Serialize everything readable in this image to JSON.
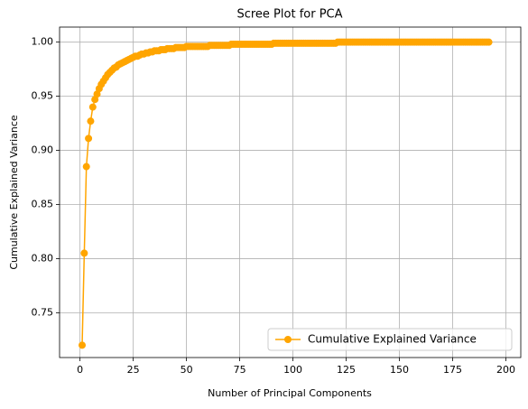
{
  "chart_data": {
    "type": "line",
    "title": "Scree Plot for PCA",
    "xlabel": "Number of Principal Components",
    "ylabel": "Cumulative Explained Variance",
    "x": [
      1,
      2,
      3,
      4,
      5,
      6,
      7,
      8,
      9,
      10,
      11,
      12,
      13,
      14,
      15,
      16,
      17,
      18,
      19,
      20,
      21,
      22,
      23,
      24,
      25,
      26,
      27,
      28,
      29,
      30,
      31,
      32,
      33,
      34,
      35,
      36,
      37,
      38,
      39,
      40,
      41,
      42,
      43,
      44,
      45,
      46,
      47,
      48,
      49,
      50,
      51,
      52,
      53,
      54,
      55,
      56,
      57,
      58,
      59,
      60,
      61,
      62,
      63,
      64,
      65,
      66,
      67,
      68,
      69,
      70,
      71,
      72,
      73,
      74,
      75,
      76,
      77,
      78,
      79,
      80,
      81,
      82,
      83,
      84,
      85,
      86,
      87,
      88,
      89,
      90,
      91,
      92,
      93,
      94,
      95,
      96,
      97,
      98,
      99,
      100,
      101,
      102,
      103,
      104,
      105,
      106,
      107,
      108,
      109,
      110,
      111,
      112,
      113,
      114,
      115,
      116,
      117,
      118,
      119,
      120,
      121,
      122,
      123,
      124,
      125,
      126,
      127,
      128,
      129,
      130,
      131,
      132,
      133,
      134,
      135,
      136,
      137,
      138,
      139,
      140,
      141,
      142,
      143,
      144,
      145,
      146,
      147,
      148,
      149,
      150,
      151,
      152,
      153,
      154,
      155,
      156,
      157,
      158,
      159,
      160,
      161,
      162,
      163,
      164,
      165,
      166,
      167,
      168,
      169,
      170,
      171,
      172,
      173,
      174,
      175,
      176,
      177,
      178,
      179,
      180,
      181,
      182,
      183,
      184,
      185,
      186,
      187,
      188,
      189,
      190,
      191,
      192
    ],
    "series": [
      {
        "name": "Cumulative Explained Variance",
        "color": "#ffa500",
        "values": [
          0.72,
          0.805,
          0.885,
          0.911,
          0.927,
          0.94,
          0.947,
          0.952,
          0.957,
          0.961,
          0.964,
          0.967,
          0.97,
          0.972,
          0.974,
          0.976,
          0.977,
          0.979,
          0.98,
          0.981,
          0.982,
          0.983,
          0.984,
          0.985,
          0.986,
          0.987,
          0.987,
          0.988,
          0.989,
          0.989,
          0.99,
          0.99,
          0.991,
          0.991,
          0.992,
          0.992,
          0.992,
          0.993,
          0.993,
          0.993,
          0.994,
          0.994,
          0.994,
          0.994,
          0.995,
          0.995,
          0.995,
          0.995,
          0.995,
          0.996,
          0.996,
          0.996,
          0.996,
          0.996,
          0.996,
          0.996,
          0.996,
          0.996,
          0.996,
          0.996,
          0.997,
          0.997,
          0.997,
          0.997,
          0.997,
          0.997,
          0.997,
          0.997,
          0.997,
          0.997,
          0.998,
          0.998,
          0.998,
          0.998,
          0.998,
          0.998,
          0.998,
          0.998,
          0.998,
          0.998,
          0.998,
          0.998,
          0.998,
          0.998,
          0.998,
          0.998,
          0.998,
          0.998,
          0.998,
          0.998,
          0.999,
          0.999,
          0.999,
          0.999,
          0.999,
          0.999,
          0.999,
          0.999,
          0.999,
          0.999,
          0.999,
          0.999,
          0.999,
          0.999,
          0.999,
          0.999,
          0.999,
          0.999,
          0.999,
          0.999,
          0.999,
          0.999,
          0.999,
          0.999,
          0.999,
          0.999,
          0.999,
          0.999,
          0.999,
          0.999,
          1.0,
          1.0,
          1.0,
          1.0,
          1.0,
          1.0,
          1.0,
          1.0,
          1.0,
          1.0,
          1.0,
          1.0,
          1.0,
          1.0,
          1.0,
          1.0,
          1.0,
          1.0,
          1.0,
          1.0,
          1.0,
          1.0,
          1.0,
          1.0,
          1.0,
          1.0,
          1.0,
          1.0,
          1.0,
          1.0,
          1.0,
          1.0,
          1.0,
          1.0,
          1.0,
          1.0,
          1.0,
          1.0,
          1.0,
          1.0,
          1.0,
          1.0,
          1.0,
          1.0,
          1.0,
          1.0,
          1.0,
          1.0,
          1.0,
          1.0,
          1.0,
          1.0,
          1.0,
          1.0,
          1.0,
          1.0,
          1.0,
          1.0,
          1.0,
          1.0,
          1.0,
          1.0,
          1.0,
          1.0,
          1.0,
          1.0,
          1.0,
          1.0,
          1.0,
          1.0,
          1.0,
          1.0
        ]
      }
    ],
    "xlim": [
      -9.6,
      207
    ],
    "xticks": [
      0,
      25,
      50,
      75,
      100,
      125,
      150,
      175,
      200
    ],
    "ylim": [
      0.7086,
      1.0139
    ],
    "yticks": [
      0.75,
      {
        "value": 0.8,
        "label": "0.80"
      },
      0.85,
      {
        "value": 0.9,
        "label": "0.90"
      },
      0.95,
      {
        "value": 1.0,
        "label": "1.00"
      }
    ],
    "grid": true,
    "legend": "lower right"
  }
}
